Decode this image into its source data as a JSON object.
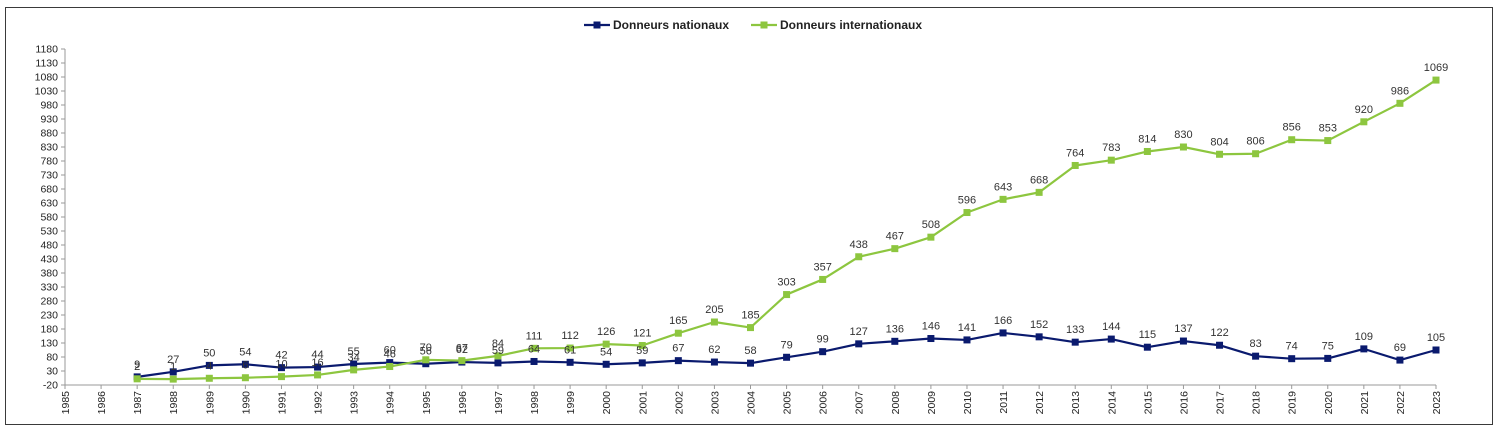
{
  "chart_data": {
    "type": "line",
    "title": "",
    "xlabel": "",
    "ylabel": "",
    "categories": [
      "1985",
      "1986",
      "1987",
      "1988",
      "1989",
      "1990",
      "1991",
      "1992",
      "1993",
      "1994",
      "1995",
      "1996",
      "1997",
      "1998",
      "1999",
      "2000",
      "2001",
      "2002",
      "2003",
      "2004",
      "2005",
      "2006",
      "2007",
      "2008",
      "2009",
      "2010",
      "2011",
      "2012",
      "2013",
      "2014",
      "2015",
      "2016",
      "2017",
      "2018",
      "2019",
      "2020",
      "2021",
      "2022",
      "2023"
    ],
    "ylim": [
      -20,
      1180
    ],
    "yticks": [
      -20,
      30,
      80,
      130,
      180,
      230,
      280,
      330,
      380,
      430,
      480,
      530,
      580,
      630,
      680,
      730,
      780,
      830,
      880,
      930,
      980,
      1030,
      1080,
      1130,
      1180
    ],
    "legend_position": "top-center",
    "grid": false,
    "series": [
      {
        "name": "Donneurs nationaux",
        "color": "#0a1a6e",
        "values": [
          null,
          null,
          9,
          27,
          50,
          54,
          42,
          44,
          55,
          60,
          56,
          62,
          59,
          64,
          61,
          54,
          59,
          67,
          62,
          58,
          79,
          99,
          127,
          136,
          146,
          141,
          166,
          152,
          133,
          144,
          115,
          137,
          122,
          83,
          74,
          75,
          109,
          69,
          105
        ]
      },
      {
        "name": "Donneurs internationaux",
        "color": "#8dc63f",
        "values": [
          null,
          null,
          2,
          1,
          4,
          6,
          10,
          16,
          34,
          46,
          70,
          67,
          84,
          111,
          112,
          126,
          121,
          165,
          205,
          185,
          303,
          357,
          438,
          467,
          508,
          596,
          643,
          668,
          764,
          783,
          814,
          830,
          804,
          806,
          856,
          853,
          920,
          986,
          1069
        ]
      }
    ]
  }
}
